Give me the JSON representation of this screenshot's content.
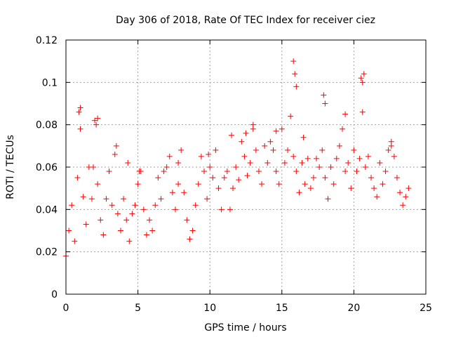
{
  "chart_data": {
    "type": "scatter",
    "title": "Day 306 of 2018, Rate Of TEC Index for receiver ciez",
    "xlabel": "GPS time / hours",
    "ylabel": "ROTI / TECUs",
    "xlim": [
      0,
      25
    ],
    "ylim": [
      0,
      0.12
    ],
    "xticks": [
      0,
      5,
      10,
      15,
      20,
      25
    ],
    "yticks": [
      0,
      0.02,
      0.04,
      0.06,
      0.08,
      0.1,
      0.12
    ],
    "xtick_labels": [
      "0",
      "5",
      "10",
      "15",
      "20",
      "25"
    ],
    "ytick_labels": [
      "0",
      "0.02",
      "0.04",
      "0.06",
      "0.08",
      "0.1",
      "0.12"
    ],
    "grid": true,
    "marker": "+",
    "color": "#ff0000",
    "series": [
      {
        "name": "ROTI",
        "x": [
          0.0,
          0.2,
          0.4,
          0.6,
          0.8,
          1.0,
          1.2,
          1.4,
          1.6,
          1.8,
          2.0,
          2.2,
          2.4,
          2.6,
          2.8,
          3.0,
          3.2,
          3.4,
          3.6,
          3.8,
          4.0,
          4.2,
          4.4,
          4.6,
          4.8,
          5.0,
          5.2,
          5.4,
          5.6,
          5.8,
          6.0,
          6.2,
          6.4,
          6.6,
          6.8,
          7.0,
          7.2,
          7.4,
          7.6,
          7.8,
          8.0,
          8.2,
          8.4,
          8.6,
          8.8,
          9.0,
          9.2,
          9.4,
          9.6,
          9.8,
          10.0,
          10.2,
          10.4,
          10.6,
          10.8,
          11.0,
          11.2,
          11.4,
          11.6,
          11.8,
          12.0,
          12.2,
          12.4,
          12.6,
          12.8,
          13.0,
          13.2,
          13.4,
          13.6,
          13.8,
          14.0,
          14.2,
          14.4,
          14.6,
          14.8,
          15.0,
          15.2,
          15.4,
          15.6,
          15.8,
          16.0,
          16.2,
          16.4,
          16.6,
          16.8,
          17.0,
          17.2,
          17.4,
          17.6,
          17.8,
          18.0,
          18.2,
          18.4,
          18.6,
          18.8,
          19.0,
          19.2,
          19.4,
          19.6,
          19.8,
          20.0,
          20.2,
          20.4,
          20.6,
          20.8,
          21.0,
          21.2,
          21.4,
          21.6,
          21.8,
          22.0,
          22.2,
          22.4,
          22.6,
          22.8,
          23.0,
          23.2,
          23.4,
          23.6,
          23.8,
          0.9,
          1.0,
          2.1,
          2.2,
          15.8,
          15.9,
          16.0,
          17.9,
          18.0,
          19.4,
          20.5,
          20.6,
          20.7,
          12.5,
          13.0,
          14.6,
          16.5,
          22.6,
          1.9,
          5.1,
          7.8,
          9.9,
          11.5,
          3.5,
          4.3
        ],
        "y": [
          0.018,
          0.03,
          0.042,
          0.025,
          0.055,
          0.078,
          0.046,
          0.033,
          0.06,
          0.045,
          0.082,
          0.052,
          0.035,
          0.028,
          0.045,
          0.058,
          0.042,
          0.066,
          0.038,
          0.03,
          0.045,
          0.035,
          0.025,
          0.038,
          0.042,
          0.052,
          0.058,
          0.04,
          0.028,
          0.035,
          0.03,
          0.042,
          0.055,
          0.045,
          0.058,
          0.06,
          0.065,
          0.048,
          0.04,
          0.052,
          0.068,
          0.048,
          0.035,
          0.026,
          0.03,
          0.042,
          0.052,
          0.065,
          0.058,
          0.045,
          0.06,
          0.055,
          0.068,
          0.05,
          0.04,
          0.055,
          0.058,
          0.04,
          0.05,
          0.06,
          0.054,
          0.072,
          0.065,
          0.056,
          0.062,
          0.078,
          0.068,
          0.058,
          0.052,
          0.07,
          0.062,
          0.072,
          0.068,
          0.058,
          0.052,
          0.078,
          0.062,
          0.068,
          0.084,
          0.065,
          0.058,
          0.048,
          0.062,
          0.052,
          0.064,
          0.05,
          0.055,
          0.064,
          0.06,
          0.068,
          0.055,
          0.045,
          0.06,
          0.052,
          0.064,
          0.07,
          0.078,
          0.058,
          0.062,
          0.05,
          0.068,
          0.058,
          0.064,
          0.086,
          0.06,
          0.065,
          0.055,
          0.05,
          0.046,
          0.062,
          0.052,
          0.058,
          0.068,
          0.072,
          0.065,
          0.055,
          0.048,
          0.042,
          0.046,
          0.05,
          0.086,
          0.088,
          0.08,
          0.083,
          0.11,
          0.104,
          0.098,
          0.094,
          0.09,
          0.085,
          0.102,
          0.1,
          0.104,
          0.076,
          0.08,
          0.077,
          0.074,
          0.07,
          0.06,
          0.058,
          0.062,
          0.066,
          0.075,
          0.07,
          0.062
        ]
      }
    ]
  }
}
